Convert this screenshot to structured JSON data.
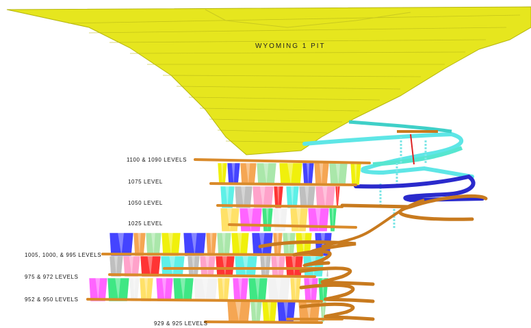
{
  "pit": {
    "name": "WYOMING 1 PIT",
    "color": "#e6e61e"
  },
  "levels": [
    {
      "label": "1100 & 1090 LEVELS"
    },
    {
      "label": "1075 LEVEL"
    },
    {
      "label": "1050 LEVEL"
    },
    {
      "label": "1025 LEVEL"
    },
    {
      "label": "1005, 1000, & 995 LEVELS"
    },
    {
      "label": "975 & 972 LEVELS"
    },
    {
      "label": "952 & 950 LEVELS"
    },
    {
      "label": "929 & 925 LEVELS"
    }
  ],
  "colors": {
    "ramp": "#c87a1e",
    "drift": "#d98a2a",
    "cyan_ramp": "#5ee6e6",
    "blue_ramp": "#2a2acc",
    "stope_palette": [
      "#f0f000",
      "#ff5cff",
      "#ff2a2a",
      "#3a3aff",
      "#35e67e",
      "#56f0e6",
      "#f5a24a",
      "#f2f2f2",
      "#bcbcbc",
      "#a6e6a6",
      "#ffe060",
      "#ff9ec8"
    ]
  }
}
